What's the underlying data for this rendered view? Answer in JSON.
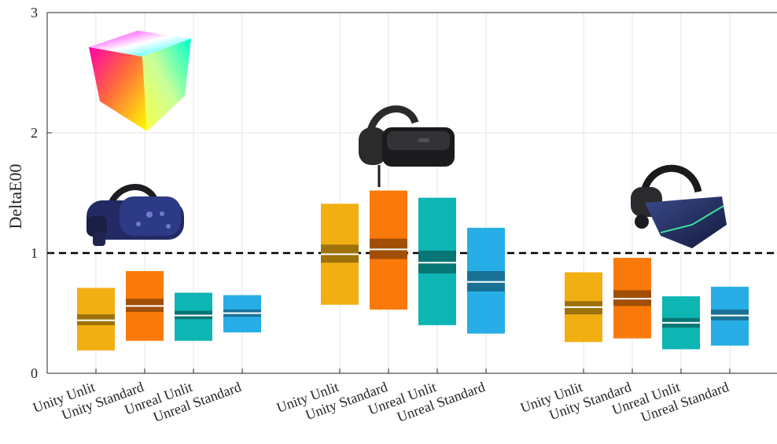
{
  "chart_data": {
    "type": "box",
    "ylabel": "DeltaE00",
    "ylim": [
      0,
      3
    ],
    "yticks": [
      "0",
      "1",
      "2",
      "3"
    ],
    "grid": true,
    "reference_line": 1,
    "groups": [
      "HTC Vive Pro",
      "Varjo",
      "Pimax"
    ],
    "categories": [
      "Unity Unlit",
      "Unity Standard",
      "Unreal Unlit",
      "Unreal Standard"
    ],
    "colors": [
      "#f1af12",
      "#f97a0a",
      "#0db5b3",
      "#27aee6"
    ],
    "series": [
      {
        "name": "Unity Unlit",
        "boxes": [
          {
            "low": 0.19,
            "high": 0.71,
            "notch_low": 0.4,
            "notch_high": 0.49,
            "median": 0.44
          },
          {
            "low": 0.57,
            "high": 1.41,
            "notch_low": 0.92,
            "notch_high": 1.07,
            "median": 0.99
          },
          {
            "low": 0.26,
            "high": 0.84,
            "notch_low": 0.49,
            "notch_high": 0.6,
            "median": 0.55
          }
        ]
      },
      {
        "name": "Unity Standard",
        "boxes": [
          {
            "low": 0.27,
            "high": 0.85,
            "notch_low": 0.51,
            "notch_high": 0.62,
            "median": 0.56
          },
          {
            "low": 0.53,
            "high": 1.52,
            "notch_low": 0.95,
            "notch_high": 1.12,
            "median": 1.03
          },
          {
            "low": 0.29,
            "high": 0.96,
            "notch_low": 0.56,
            "notch_high": 0.69,
            "median": 0.62
          }
        ]
      },
      {
        "name": "Unreal Unlit",
        "boxes": [
          {
            "low": 0.27,
            "high": 0.67,
            "notch_low": 0.45,
            "notch_high": 0.52,
            "median": 0.48
          },
          {
            "low": 0.4,
            "high": 1.46,
            "notch_low": 0.83,
            "notch_high": 1.02,
            "median": 0.92
          },
          {
            "low": 0.2,
            "high": 0.64,
            "notch_low": 0.38,
            "notch_high": 0.46,
            "median": 0.42
          }
        ]
      },
      {
        "name": "Unreal Standard",
        "boxes": [
          {
            "low": 0.34,
            "high": 0.65,
            "notch_low": 0.47,
            "notch_high": 0.53,
            "median": 0.5
          },
          {
            "low": 0.33,
            "high": 1.21,
            "notch_low": 0.68,
            "notch_high": 0.85,
            "median": 0.76
          },
          {
            "low": 0.23,
            "high": 0.72,
            "notch_low": 0.44,
            "notch_high": 0.53,
            "median": 0.48
          }
        ]
      }
    ]
  },
  "icons": {
    "color_cube": "rgb-color-cube-icon",
    "headset_1": "htc-vive-pro-headset-icon",
    "headset_2": "varjo-headset-icon",
    "headset_3": "pimax-headset-icon"
  }
}
